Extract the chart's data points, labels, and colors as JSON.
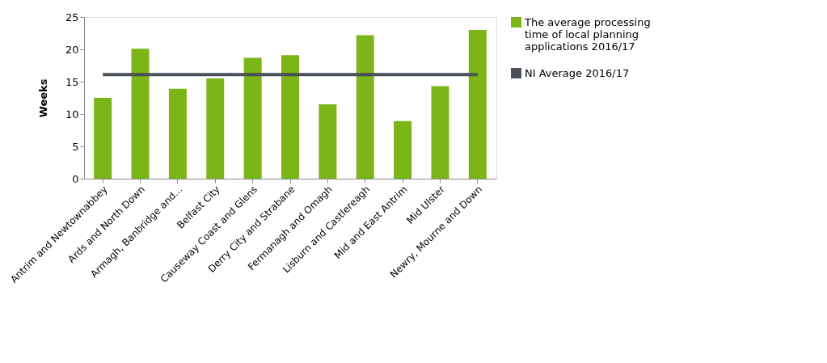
{
  "chart_data": {
    "type": "bar",
    "ylabel": "Weeks",
    "categories": [
      "Antrim and Newtownabbey",
      "Ards and North Down",
      "Armagh, Banbridge and...",
      "Belfast City",
      "Causeway Coast and Glens",
      "Derry City and Strabane",
      "Fermanagh and Omagh",
      "Lisburn and Castlereagh",
      "Mid and East Antrim",
      "Mid Ulster",
      "Newry, Mourne and Down"
    ],
    "series": [
      {
        "name": "The average processing time of local planning applications 2016/17",
        "color": "#7cb518",
        "values": [
          12.5,
          20.1,
          13.9,
          15.5,
          18.7,
          19.1,
          11.5,
          22.2,
          8.9,
          14.3,
          23.0
        ]
      },
      {
        "name": "NI Average 2016/17",
        "type": "line",
        "color": "#4a5058",
        "values": [
          16.1,
          16.1,
          16.1,
          16.1,
          16.1,
          16.1,
          16.1,
          16.1,
          16.1,
          16.1,
          16.1
        ]
      }
    ],
    "ylim": [
      0,
      25
    ],
    "yticks": [
      0,
      5,
      10,
      15,
      20,
      25
    ],
    "grid": false,
    "legend": "right"
  }
}
